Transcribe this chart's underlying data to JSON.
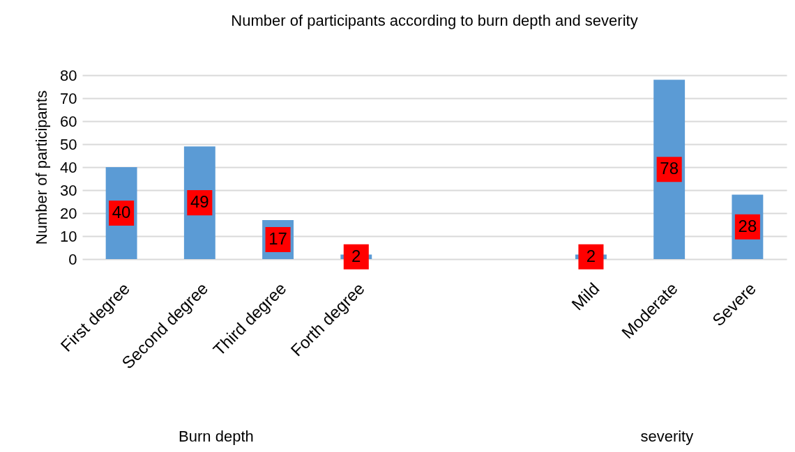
{
  "chart_data": {
    "type": "bar",
    "title": "Number of participants according to burn depth and severity",
    "ylabel": "Number of participants",
    "categories": [
      "First degree",
      "Second degree",
      "Third degree",
      "Forth degree",
      null,
      null,
      "Mild",
      "Moderate",
      "Severe"
    ],
    "values": [
      40,
      49,
      17,
      2,
      null,
      null,
      2,
      78,
      28
    ],
    "color": "#5b9bd5",
    "ylim": [
      0,
      80
    ],
    "yticks": [
      0,
      10,
      20,
      30,
      40,
      50,
      60,
      70,
      80
    ],
    "grid": "y",
    "data_labels": true,
    "annotations": [
      "Burn depth",
      "severity"
    ]
  }
}
